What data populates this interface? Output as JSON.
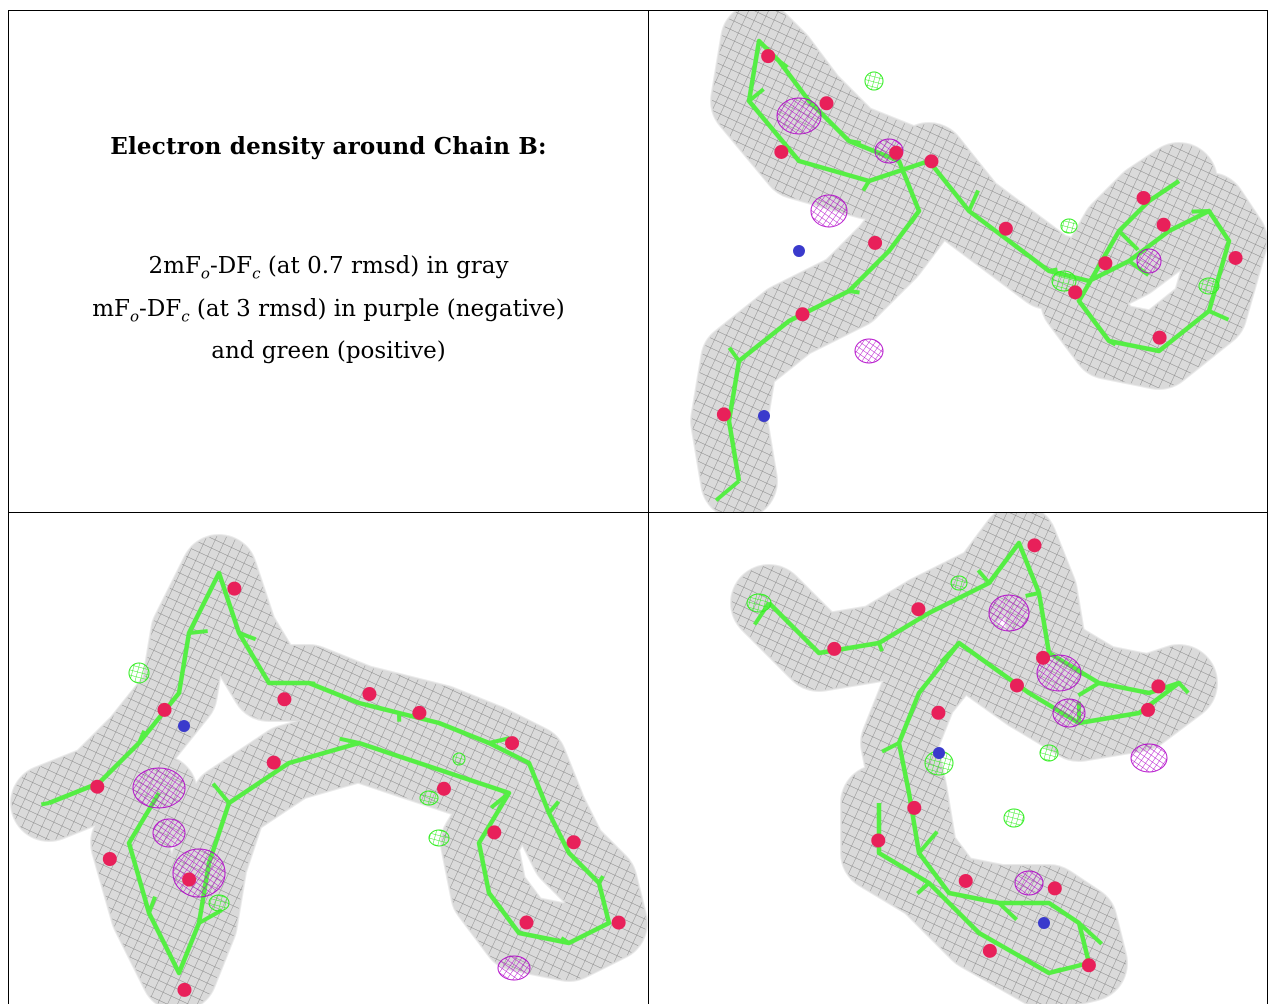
{
  "caption": {
    "title": "Electron density around Chain B:",
    "line1": [
      "2mF",
      "o",
      "-DF",
      "c",
      " (at 0.7 rmsd) in gray"
    ],
    "line2": [
      "mF",
      "o",
      "-DF",
      "c",
      " (at 3 rmsd) in purple (negative)"
    ],
    "line3": "and green (positive)"
  },
  "colors": {
    "mesh_gray": "#8c8c8c",
    "mesh_purple": "#b000c8",
    "mesh_green": "#33ee22",
    "carbon_bond": "#55ee44",
    "oxygen_atom": "#e8205a",
    "nitrogen_atom": "#3a3acc",
    "border": "#000000"
  },
  "panels": [
    {
      "id": "top-right",
      "content": "density-map"
    },
    {
      "id": "bottom-left",
      "content": "density-map"
    },
    {
      "id": "bottom-right",
      "content": "density-map"
    }
  ]
}
